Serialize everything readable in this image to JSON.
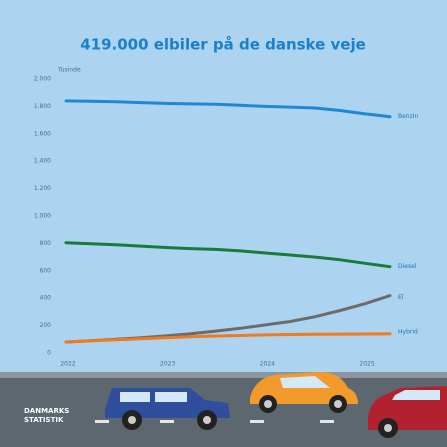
{
  "chart_data": {
    "type": "line",
    "title": "419.000 elbiler på de danske veje",
    "y_unit": "Tusinde",
    "x": [
      2022,
      2022.25,
      2022.5,
      2022.75,
      2023,
      2023.25,
      2023.5,
      2023.75,
      2024,
      2024.25,
      2024.5,
      2024.75,
      2025,
      2025.25
    ],
    "xlim": [
      2022,
      2025.25
    ],
    "xticks": [
      2022,
      2023,
      2024,
      2025
    ],
    "ylim": [
      0,
      2000
    ],
    "yticks": [
      0,
      200,
      400,
      600,
      800,
      {
        "value": 1000,
        "label": "1.000"
      },
      {
        "value": 1200,
        "label": "1.200"
      },
      {
        "value": 1400,
        "label": "1.400"
      },
      {
        "value": 1600,
        "label": "1.600"
      },
      {
        "value": 1800,
        "label": "1.800"
      },
      {
        "value": 2000,
        "label": "2.000"
      }
    ],
    "grid": false,
    "series": [
      {
        "name": "Benzin",
        "color": "#1e88d6",
        "values": [
          1840,
          1838,
          1834,
          1828,
          1822,
          1818,
          1815,
          1808,
          1800,
          1795,
          1788,
          1770,
          1745,
          1725
        ]
      },
      {
        "name": "Diesel",
        "color": "#1a7a3a",
        "values": [
          805,
          798,
          790,
          780,
          770,
          762,
          756,
          745,
          730,
          715,
          700,
          680,
          655,
          630
        ]
      },
      {
        "name": "El",
        "color": "#6b6b6b",
        "values": [
          80,
          90,
          100,
          112,
          125,
          140,
          160,
          180,
          205,
          230,
          265,
          310,
          360,
          419
        ]
      },
      {
        "name": "Hybrid",
        "color": "#f07a1e",
        "values": [
          80,
          88,
          96,
          104,
          112,
          118,
          124,
          128,
          132,
          135,
          137,
          138,
          139,
          140
        ]
      }
    ]
  },
  "logo": [
    "DANMARKS",
    "STATISTIK"
  ]
}
